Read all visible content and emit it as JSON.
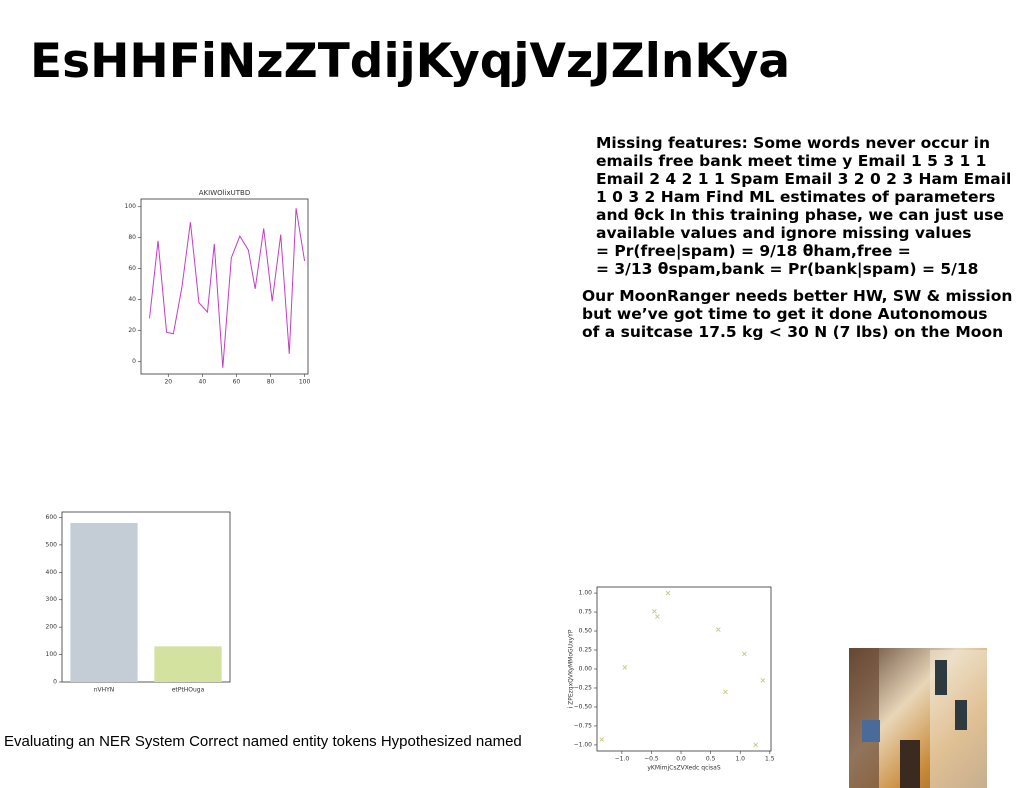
{
  "title": "EsHHFiNzZTdijKyqjVzJZlnKya",
  "paragraphs": [
    [
      "Missing features: Some words never occur in",
      "emails free bank meet time y Email 1 5 3 1 1",
      "Email 2 4 2 1 1 Spam Email 3 2 0 2 3 Ham Email",
      "1 0 3 2 Ham Find ML estimates of parameters",
      "and θck In this training phase, we can just use",
      "available values and ignore missing values",
      "= Pr(free|spam) = 9/18 θham,free =",
      "= 3/13 θspam,bank = Pr(bank|spam) = 5/18"
    ],
    [
      "Our MoonRanger needs better HW, SW & mission",
      "but we’ve got time to get it done Autonomous",
      "of a suitcase 17.5 kg < 30 N (7 lbs) on the Moon"
    ]
  ],
  "caption": "Evaluating an NER System Correct named entity tokens Hypothesized named",
  "chart_data": [
    {
      "type": "line",
      "title": "AKIWOlixUTBD",
      "color": "#c040c0",
      "x": [
        9,
        14,
        19,
        23,
        28,
        33,
        38,
        43,
        47,
        52,
        57,
        62,
        67,
        71,
        76,
        81,
        86,
        91,
        95,
        100
      ],
      "values": [
        28,
        78,
        19,
        18,
        48,
        90,
        38,
        32,
        76,
        -4,
        67,
        81,
        72,
        47,
        86,
        39,
        82,
        5,
        99,
        65
      ],
      "xlim": [
        4,
        102
      ],
      "ylim": [
        -8,
        105
      ],
      "xticks": [
        20,
        40,
        60,
        80,
        100
      ],
      "yticks": [
        0,
        20,
        40,
        60,
        80,
        100
      ]
    },
    {
      "type": "bar",
      "categories": [
        "nVHYN",
        "etPtHOuga"
      ],
      "values": [
        580,
        130
      ],
      "colors": [
        "#c4cdd5",
        "#d4e29f"
      ],
      "ylim": [
        0,
        620
      ],
      "yticks": [
        0,
        100,
        200,
        300,
        400,
        500,
        600
      ]
    },
    {
      "type": "scatter",
      "xlabel": "yKMimjCsZVXedc qcisaS",
      "ylabel": "i ZPEzqxQVKyMMoGUxyYP",
      "color": "#c8c87a",
      "x": [
        -1.34,
        -0.95,
        -0.45,
        -0.4,
        -0.22,
        0.63,
        0.75,
        1.07,
        1.26,
        1.38
      ],
      "values": [
        -0.93,
        0.02,
        0.76,
        0.69,
        1.0,
        0.52,
        -0.3,
        0.2,
        -1.0,
        -0.15
      ],
      "xlim": [
        -1.42,
        1.52
      ],
      "ylim": [
        -1.08,
        1.08
      ],
      "xticks": [
        {
          "value": -1,
          "label": "−1.0"
        },
        {
          "value": -0.5,
          "label": "−0.5"
        },
        {
          "value": 0,
          "label": "0.0"
        },
        {
          "value": 0.5,
          "label": "0.5"
        },
        {
          "value": 1,
          "label": "1.0"
        },
        {
          "value": 1.5,
          "label": "1.5"
        }
      ],
      "yticks": [
        {
          "value": -1,
          "label": "−1.00"
        },
        {
          "value": -0.75,
          "label": "−0.75"
        },
        {
          "value": -0.5,
          "label": "−0.50"
        },
        {
          "value": -0.25,
          "label": "−0.25"
        },
        {
          "value": 0,
          "label": "0.00"
        },
        {
          "value": 0.25,
          "label": "0.25"
        },
        {
          "value": 0.5,
          "label": "0.50"
        },
        {
          "value": 0.75,
          "label": "0.75"
        },
        {
          "value": 1,
          "label": "1.00"
        }
      ]
    }
  ]
}
